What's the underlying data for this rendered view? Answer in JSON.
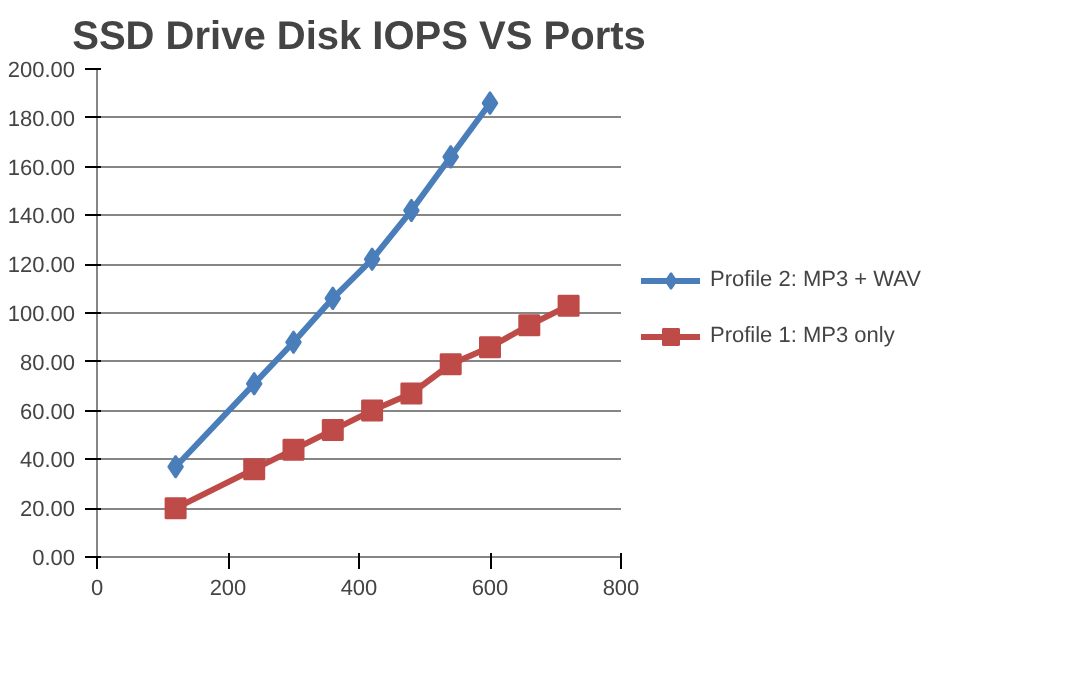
{
  "chart_data": {
    "type": "line",
    "title": "SSD Drive Disk IOPS VS Ports",
    "series": [
      {
        "name": "Profile 2: MP3 + WAV",
        "color": "#4a7ebb",
        "marker": "diamond",
        "x": [
          120,
          240,
          300,
          360,
          420,
          480,
          540,
          600
        ],
        "values": [
          37,
          71,
          88,
          106,
          122,
          142,
          164,
          186
        ]
      },
      {
        "name": "Profile 1: MP3 only",
        "color": "#be4b48",
        "marker": "square",
        "x": [
          120,
          240,
          300,
          360,
          420,
          480,
          540,
          600,
          660,
          720
        ],
        "values": [
          20,
          36,
          44,
          52,
          60,
          67,
          79,
          86,
          95,
          103
        ]
      }
    ],
    "xlim": [
      0,
      800
    ],
    "xticks": [
      0,
      200,
      400,
      600,
      800
    ],
    "ylim": [
      0,
      200
    ],
    "yticks": [
      {
        "value": 0,
        "label": "0.00"
      },
      {
        "value": 20,
        "label": "20.00"
      },
      {
        "value": 40,
        "label": "40.00"
      },
      {
        "value": 60,
        "label": "60.00"
      },
      {
        "value": 80,
        "label": "80.00"
      },
      {
        "value": 100,
        "label": "100.00"
      },
      {
        "value": 120,
        "label": "120.00"
      },
      {
        "value": 140,
        "label": "140.00"
      },
      {
        "value": 160,
        "label": "160.00"
      },
      {
        "value": 180,
        "label": "180.00"
      },
      {
        "value": 200,
        "label": "200.00"
      }
    ],
    "grid": "y",
    "legend": "right"
  }
}
